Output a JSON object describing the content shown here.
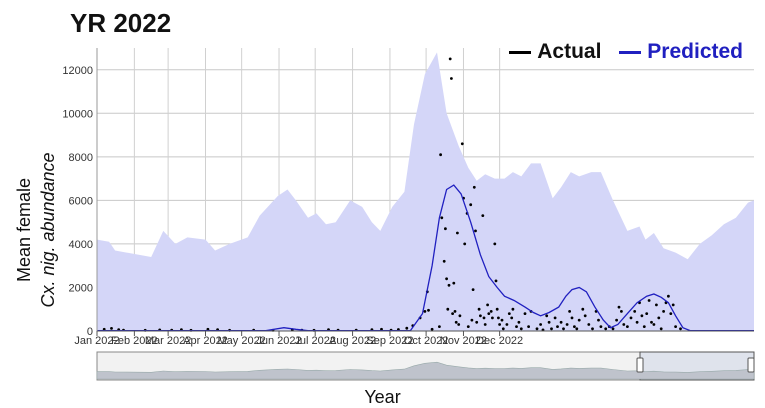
{
  "title": "YR 2022",
  "legend": {
    "actual_label": "Actual",
    "predicted_label": "Predicted",
    "actual_color": "#000000",
    "predicted_color": "#2020c0"
  },
  "chart_data": {
    "type": "line",
    "title": "YR 2022",
    "xlabel": "Year",
    "ylabel_line1": "Mean female",
    "ylabel_line2": "Cx. nig. abundance",
    "ylim": [
      0,
      13000
    ],
    "yticks": [
      0,
      2000,
      4000,
      6000,
      8000,
      10000,
      12000
    ],
    "x_tick_labels": [
      "Jan 2022",
      "Feb 2022",
      "Mar 2022",
      "Apr 2022",
      "May 2022",
      "Jun 2022",
      "Jul 2022",
      "Aug 2022",
      "Sep 2022",
      "Oct 2022",
      "Nov 2022",
      "Dec 2022"
    ],
    "grid": true,
    "legend_position": "top-right",
    "band_color": "#d4d6f8",
    "predicted_band_upper": [
      [
        0,
        4200
      ],
      [
        10,
        4100
      ],
      [
        15,
        3700
      ],
      [
        45,
        3400
      ],
      [
        55,
        4600
      ],
      [
        65,
        4000
      ],
      [
        75,
        4300
      ],
      [
        90,
        4200
      ],
      [
        98,
        3700
      ],
      [
        110,
        4000
      ],
      [
        125,
        4300
      ],
      [
        135,
        5300
      ],
      [
        150,
        6200
      ],
      [
        158,
        6500
      ],
      [
        165,
        6000
      ],
      [
        175,
        5200
      ],
      [
        182,
        5400
      ],
      [
        190,
        4900
      ],
      [
        198,
        5000
      ],
      [
        210,
        6000
      ],
      [
        220,
        5700
      ],
      [
        228,
        5000
      ],
      [
        235,
        4600
      ],
      [
        245,
        5700
      ],
      [
        255,
        6400
      ],
      [
        263,
        9500
      ],
      [
        272,
        11800
      ],
      [
        282,
        12800
      ],
      [
        290,
        10000
      ],
      [
        300,
        8500
      ],
      [
        308,
        7500
      ],
      [
        315,
        6900
      ],
      [
        322,
        7200
      ],
      [
        330,
        7000
      ],
      [
        338,
        7000
      ],
      [
        345,
        7300
      ],
      [
        352,
        7100
      ],
      [
        360,
        7700
      ],
      [
        368,
        7700
      ],
      [
        378,
        6100
      ],
      [
        385,
        6600
      ],
      [
        393,
        7300
      ],
      [
        400,
        7100
      ],
      [
        410,
        7300
      ],
      [
        418,
        7300
      ],
      [
        428,
        6000
      ],
      [
        440,
        4600
      ],
      [
        450,
        4800
      ],
      [
        455,
        4200
      ],
      [
        462,
        4500
      ],
      [
        470,
        3800
      ],
      [
        480,
        3600
      ],
      [
        490,
        3300
      ],
      [
        500,
        4000
      ],
      [
        510,
        4400
      ],
      [
        520,
        4900
      ],
      [
        530,
        5200
      ],
      [
        540,
        5900
      ],
      [
        545,
        6000
      ]
    ],
    "series": [
      {
        "name": "Predicted",
        "values": [
          [
            0,
            20
          ],
          [
            140,
            20
          ],
          [
            155,
            150
          ],
          [
            165,
            80
          ],
          [
            175,
            20
          ],
          [
            260,
            20
          ],
          [
            270,
            800
          ],
          [
            278,
            3000
          ],
          [
            284,
            5200
          ],
          [
            290,
            6500
          ],
          [
            296,
            6700
          ],
          [
            302,
            6300
          ],
          [
            310,
            5000
          ],
          [
            318,
            3500
          ],
          [
            325,
            2500
          ],
          [
            332,
            2000
          ],
          [
            338,
            1600
          ],
          [
            346,
            1400
          ],
          [
            355,
            1100
          ],
          [
            362,
            850
          ],
          [
            368,
            700
          ],
          [
            375,
            850
          ],
          [
            383,
            1100
          ],
          [
            389,
            1600
          ],
          [
            394,
            1900
          ],
          [
            400,
            2000
          ],
          [
            406,
            1800
          ],
          [
            413,
            1100
          ],
          [
            420,
            500
          ],
          [
            426,
            150
          ],
          [
            432,
            300
          ],
          [
            440,
            800
          ],
          [
            448,
            1300
          ],
          [
            456,
            1600
          ],
          [
            462,
            1700
          ],
          [
            468,
            1550
          ],
          [
            474,
            1300
          ],
          [
            480,
            700
          ],
          [
            486,
            150
          ],
          [
            492,
            20
          ],
          [
            545,
            20
          ]
        ]
      },
      {
        "name": "Actual",
        "points": [
          [
            6,
            80
          ],
          [
            12,
            120
          ],
          [
            18,
            60
          ],
          [
            22,
            40
          ],
          [
            40,
            30
          ],
          [
            52,
            50
          ],
          [
            62,
            40
          ],
          [
            70,
            60
          ],
          [
            78,
            30
          ],
          [
            92,
            80
          ],
          [
            100,
            60
          ],
          [
            110,
            30
          ],
          [
            130,
            40
          ],
          [
            146,
            30
          ],
          [
            162,
            60
          ],
          [
            170,
            40
          ],
          [
            180,
            30
          ],
          [
            192,
            60
          ],
          [
            200,
            40
          ],
          [
            215,
            40
          ],
          [
            228,
            60
          ],
          [
            236,
            80
          ],
          [
            244,
            40
          ],
          [
            250,
            70
          ],
          [
            257,
            130
          ],
          [
            262,
            250
          ],
          [
            268,
            600
          ],
          [
            272,
            900
          ],
          [
            274,
            1800
          ],
          [
            275,
            950
          ],
          [
            278,
            80
          ],
          [
            284,
            200
          ],
          [
            285,
            8100
          ],
          [
            286,
            5200
          ],
          [
            288,
            3200
          ],
          [
            289,
            4700
          ],
          [
            290,
            2400
          ],
          [
            291,
            1000
          ],
          [
            292,
            2100
          ],
          [
            293,
            12500
          ],
          [
            294,
            11600
          ],
          [
            295,
            800
          ],
          [
            296,
            2200
          ],
          [
            297,
            900
          ],
          [
            298,
            400
          ],
          [
            299,
            4500
          ],
          [
            300,
            300
          ],
          [
            301,
            700
          ],
          [
            303,
            8600
          ],
          [
            304,
            6100
          ],
          [
            305,
            4000
          ],
          [
            307,
            5400
          ],
          [
            308,
            200
          ],
          [
            310,
            5800
          ],
          [
            311,
            500
          ],
          [
            312,
            1900
          ],
          [
            313,
            6600
          ],
          [
            314,
            4600
          ],
          [
            315,
            400
          ],
          [
            317,
            1000
          ],
          [
            318,
            700
          ],
          [
            320,
            5300
          ],
          [
            321,
            600
          ],
          [
            322,
            300
          ],
          [
            324,
            1200
          ],
          [
            325,
            800
          ],
          [
            327,
            900
          ],
          [
            328,
            600
          ],
          [
            330,
            4000
          ],
          [
            331,
            2300
          ],
          [
            332,
            1000
          ],
          [
            333,
            600
          ],
          [
            334,
            300
          ],
          [
            336,
            500
          ],
          [
            337,
            100
          ],
          [
            340,
            300
          ],
          [
            342,
            800
          ],
          [
            344,
            600
          ],
          [
            345,
            1000
          ],
          [
            348,
            200
          ],
          [
            350,
            400
          ],
          [
            352,
            100
          ],
          [
            355,
            800
          ],
          [
            358,
            200
          ],
          [
            360,
            900
          ],
          [
            365,
            100
          ],
          [
            368,
            300
          ],
          [
            370,
            50
          ],
          [
            373,
            700
          ],
          [
            375,
            400
          ],
          [
            377,
            100
          ],
          [
            380,
            600
          ],
          [
            382,
            200
          ],
          [
            385,
            400
          ],
          [
            387,
            100
          ],
          [
            390,
            300
          ],
          [
            392,
            900
          ],
          [
            394,
            600
          ],
          [
            396,
            200
          ],
          [
            398,
            100
          ],
          [
            400,
            500
          ],
          [
            403,
            1000
          ],
          [
            405,
            700
          ],
          [
            408,
            300
          ],
          [
            411,
            100
          ],
          [
            414,
            900
          ],
          [
            416,
            500
          ],
          [
            418,
            200
          ],
          [
            422,
            100
          ],
          [
            425,
            200
          ],
          [
            428,
            100
          ],
          [
            431,
            500
          ],
          [
            433,
            1100
          ],
          [
            435,
            900
          ],
          [
            437,
            300
          ],
          [
            440,
            200
          ],
          [
            443,
            600
          ],
          [
            446,
            900
          ],
          [
            448,
            400
          ],
          [
            450,
            1300
          ],
          [
            452,
            700
          ],
          [
            454,
            200
          ],
          [
            456,
            800
          ],
          [
            458,
            1400
          ],
          [
            460,
            400
          ],
          [
            462,
            300
          ],
          [
            464,
            1200
          ],
          [
            466,
            600
          ],
          [
            468,
            100
          ],
          [
            470,
            900
          ],
          [
            472,
            1300
          ],
          [
            474,
            1600
          ],
          [
            476,
            800
          ],
          [
            478,
            1200
          ],
          [
            480,
            200
          ],
          [
            484,
            100
          ]
        ]
      }
    ]
  }
}
